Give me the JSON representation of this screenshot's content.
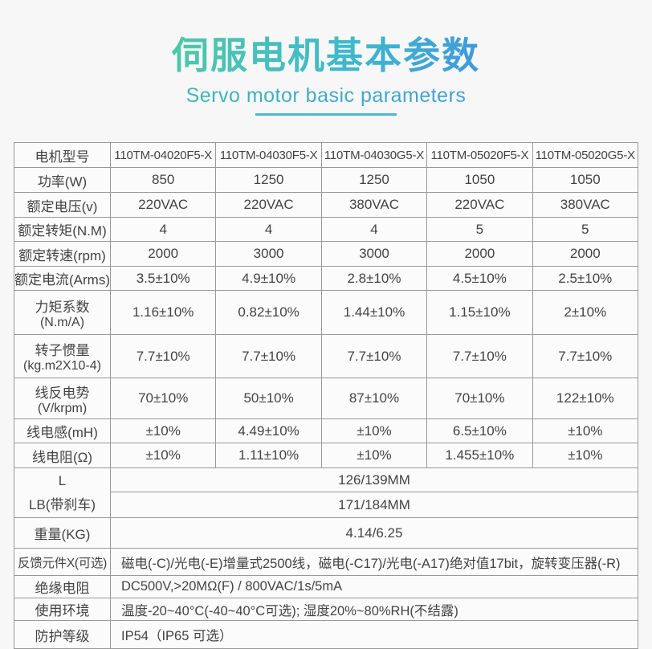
{
  "page": {
    "title": "伺服电机基本参数",
    "subtitle": "Servo motor basic parameters"
  },
  "colors": {
    "title_gradient_start": "#50c8a4",
    "title_gradient_end": "#3f97dc",
    "subtitle_gradient_start": "#3db6b4",
    "subtitle_gradient_end": "#429fd9",
    "underline": "#4cb7d0",
    "text": "#434343",
    "border": "#999999",
    "background": "#f7f7f7"
  },
  "table": {
    "header_row": {
      "label": "电机型号",
      "models": [
        "110TM-04020F5-X",
        "110TM-04030F5-X",
        "110TM-04030G5-X",
        "110TM-05020F5-X",
        "110TM-05020G5-X"
      ]
    },
    "param_rows": [
      {
        "label": "功率(W)",
        "values": [
          "850",
          "1250",
          "1250",
          "1050",
          "1050"
        ]
      },
      {
        "label": "额定电压(v)",
        "values": [
          "220VAC",
          "220VAC",
          "380VAC",
          "220VAC",
          "380VAC"
        ]
      },
      {
        "label": "额定转矩(N.M)",
        "values": [
          "4",
          "4",
          "4",
          "5",
          "5"
        ]
      },
      {
        "label": "额定转速(rpm)",
        "values": [
          "2000",
          "3000",
          "3000",
          "2000",
          "2000"
        ]
      },
      {
        "label": "额定电流(Arms)",
        "values": [
          "3.5±10%",
          "4.9±10%",
          "2.8±10%",
          "4.5±10%",
          "2.5±10%"
        ]
      },
      {
        "label": "力矩系数",
        "label2": "(N.m/A)",
        "values": [
          "1.16±10%",
          "0.82±10%",
          "1.44±10%",
          "1.15±10%",
          "2±10%"
        ]
      },
      {
        "label": "转子惯量",
        "label2": "(kg.m2X10-4)",
        "values": [
          "7.7±10%",
          "7.7±10%",
          "7.7±10%",
          "7.7±10%",
          "7.7±10%"
        ]
      },
      {
        "label": "线反电势",
        "label2": "(V/krpm)",
        "values": [
          "70±10%",
          "50±10%",
          "87±10%",
          "70±10%",
          "122±10%"
        ]
      },
      {
        "label": "线电感(mH)",
        "values": [
          "±10%",
          "4.49±10%",
          "±10%",
          "6.5±10%",
          "±10%"
        ]
      },
      {
        "label": "线电阻(Ω)",
        "values": [
          "±10%",
          "1.11±10%",
          "±10%",
          "1.455±10%",
          "±10%"
        ]
      }
    ],
    "dimension_rows": {
      "l_label": "L",
      "l_value": "126/139MM",
      "lb_label": "LB(带刹车)",
      "lb_value": "171/184MM",
      "weight_label": "重量(KG)",
      "weight_value": "4.14/6.25"
    },
    "info_rows": [
      {
        "label": "反馈元件X(可选)",
        "value": "磁电(-C)/光电(-E)增量式2500线，磁电(-C17)/光电(-A17)绝对值17bit，旋转变压器(-R)"
      },
      {
        "label": "绝缘电阻",
        "value": "DC500V,>20MΩ(F) / 800VAC/1s/5mA"
      },
      {
        "label": "使用环境",
        "value": "温度-20~40°C(-40~40°C可选); 湿度20%~80%RH(不结露)"
      },
      {
        "label": "防护等级",
        "value": "IP54（IP65 可选）"
      }
    ]
  }
}
